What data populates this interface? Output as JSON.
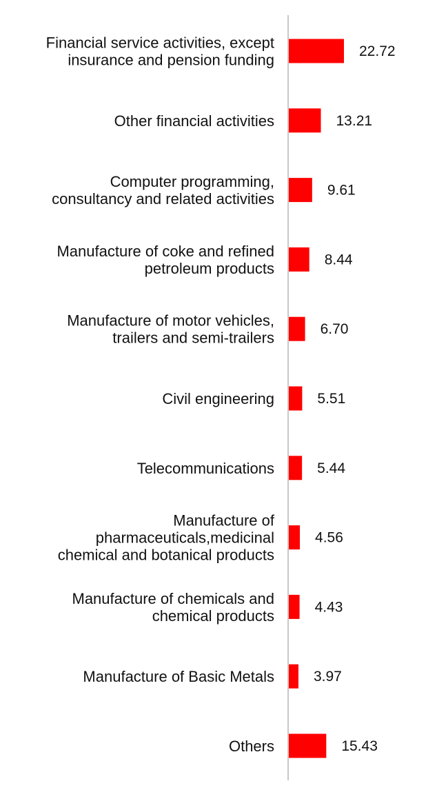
{
  "colors": {
    "bar": "#ff0000",
    "axis": "#c8c8c8",
    "text": "#111111"
  },
  "chart_data": {
    "type": "bar",
    "orientation": "horizontal",
    "title": "",
    "xlabel": "",
    "ylabel": "",
    "xlim": [
      0,
      22.72
    ],
    "grid": false,
    "categories": [
      [
        "Financial service activities, except",
        "insurance and pension funding"
      ],
      [
        "Other financial activities"
      ],
      [
        "Computer programming,",
        "consultancy and related activities"
      ],
      [
        "Manufacture of coke and refined",
        "petroleum products"
      ],
      [
        "Manufacture of motor vehicles,",
        "trailers and semi-trailers"
      ],
      [
        "Civil engineering"
      ],
      [
        "Telecommunications"
      ],
      [
        "Manufacture of",
        "pharmaceuticals,medicinal",
        "chemical and botanical products"
      ],
      [
        "Manufacture of chemicals and",
        "chemical products"
      ],
      [
        "Manufacture of Basic Metals"
      ],
      [
        "Others"
      ]
    ],
    "values": [
      22.72,
      13.21,
      9.61,
      8.44,
      6.7,
      5.51,
      5.44,
      4.56,
      4.43,
      3.97,
      15.43
    ],
    "value_labels": [
      "22.72",
      "13.21",
      "9.61",
      "8.44",
      "6.70",
      "5.51",
      "5.44",
      "4.56",
      "4.43",
      "3.97",
      "15.43"
    ]
  }
}
